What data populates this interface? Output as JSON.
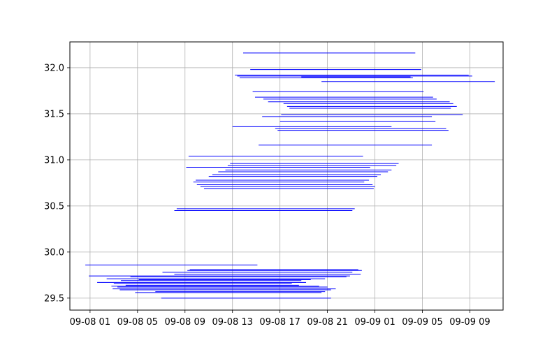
{
  "chart_data": {
    "type": "line",
    "title": "",
    "xlabel": "",
    "ylabel": "",
    "grid": true,
    "line_color": "#0000ff",
    "xlim_hours": [
      -1.7,
      34.8
    ],
    "ylim": [
      29.37,
      32.28
    ],
    "x_ticks": [
      {
        "hour": 0,
        "label": "09-08 01"
      },
      {
        "hour": 4,
        "label": "09-08 05"
      },
      {
        "hour": 8,
        "label": "09-08 09"
      },
      {
        "hour": 12,
        "label": "09-08 13"
      },
      {
        "hour": 16,
        "label": "09-08 17"
      },
      {
        "hour": 20,
        "label": "09-08 21"
      },
      {
        "hour": 24,
        "label": "09-09 01"
      },
      {
        "hour": 28,
        "label": "09-09 05"
      },
      {
        "hour": 32,
        "label": "09-09 09"
      }
    ],
    "y_ticks": [
      {
        "value": 29.5,
        "label": "29.5"
      },
      {
        "value": 30.0,
        "label": "30.0"
      },
      {
        "value": 30.5,
        "label": "30.5"
      },
      {
        "value": 31.0,
        "label": "31.0"
      },
      {
        "value": 31.5,
        "label": "31.5"
      },
      {
        "value": 32.0,
        "label": "32.0"
      }
    ],
    "segments": [
      {
        "y": 32.16,
        "x_start": 12.9,
        "x_end": 27.4
      },
      {
        "y": 31.98,
        "x_start": 13.5,
        "x_end": 27.9
      },
      {
        "y": 31.92,
        "x_start": 12.2,
        "x_end": 31.9
      },
      {
        "y": 31.91,
        "x_start": 12.4,
        "x_end": 32.2
      },
      {
        "y": 31.9,
        "x_start": 17.8,
        "x_end": 27.0
      },
      {
        "y": 31.89,
        "x_start": 12.6,
        "x_end": 27.2
      },
      {
        "y": 31.85,
        "x_start": 19.5,
        "x_end": 34.1
      },
      {
        "y": 31.74,
        "x_start": 13.7,
        "x_end": 28.1
      },
      {
        "y": 31.68,
        "x_start": 13.9,
        "x_end": 28.9
      },
      {
        "y": 31.66,
        "x_start": 14.6,
        "x_end": 29.2
      },
      {
        "y": 31.63,
        "x_start": 15.0,
        "x_end": 30.3
      },
      {
        "y": 31.61,
        "x_start": 16.3,
        "x_end": 30.6
      },
      {
        "y": 31.58,
        "x_start": 16.6,
        "x_end": 30.9
      },
      {
        "y": 31.56,
        "x_start": 16.8,
        "x_end": 30.4
      },
      {
        "y": 31.49,
        "x_start": 16.1,
        "x_end": 31.4
      },
      {
        "y": 31.47,
        "x_start": 14.5,
        "x_end": 28.8
      },
      {
        "y": 31.42,
        "x_start": 16.0,
        "x_end": 29.1
      },
      {
        "y": 31.36,
        "x_start": 12.0,
        "x_end": 25.4
      },
      {
        "y": 31.34,
        "x_start": 15.6,
        "x_end": 30.0
      },
      {
        "y": 31.32,
        "x_start": 15.8,
        "x_end": 30.2
      },
      {
        "y": 31.16,
        "x_start": 14.2,
        "x_end": 28.8
      },
      {
        "y": 31.04,
        "x_start": 8.3,
        "x_end": 23.0
      },
      {
        "y": 30.96,
        "x_start": 11.8,
        "x_end": 26.0
      },
      {
        "y": 30.94,
        "x_start": 11.6,
        "x_end": 25.8
      },
      {
        "y": 30.92,
        "x_start": 8.1,
        "x_end": 23.6
      },
      {
        "y": 30.89,
        "x_start": 11.4,
        "x_end": 25.4
      },
      {
        "y": 30.87,
        "x_start": 10.8,
        "x_end": 25.1
      },
      {
        "y": 30.84,
        "x_start": 10.3,
        "x_end": 24.5
      },
      {
        "y": 30.82,
        "x_start": 10.0,
        "x_end": 24.2
      },
      {
        "y": 30.78,
        "x_start": 8.9,
        "x_end": 23.5
      },
      {
        "y": 30.76,
        "x_start": 8.7,
        "x_end": 23.1
      },
      {
        "y": 30.73,
        "x_start": 9.0,
        "x_end": 23.8
      },
      {
        "y": 30.71,
        "x_start": 9.3,
        "x_end": 24.0
      },
      {
        "y": 30.69,
        "x_start": 9.6,
        "x_end": 23.9
      },
      {
        "y": 30.47,
        "x_start": 7.3,
        "x_end": 22.3
      },
      {
        "y": 30.45,
        "x_start": 7.1,
        "x_end": 22.1
      },
      {
        "y": 29.86,
        "x_start": -0.4,
        "x_end": 14.1
      },
      {
        "y": 29.81,
        "x_start": 8.4,
        "x_end": 22.6
      },
      {
        "y": 29.8,
        "x_start": 8.2,
        "x_end": 22.9
      },
      {
        "y": 29.78,
        "x_start": 6.1,
        "x_end": 22.1
      },
      {
        "y": 29.76,
        "x_start": 7.1,
        "x_end": 22.8
      },
      {
        "y": 29.74,
        "x_start": -0.1,
        "x_end": 21.9
      },
      {
        "y": 29.73,
        "x_start": 3.4,
        "x_end": 21.6
      },
      {
        "y": 29.71,
        "x_start": 1.4,
        "x_end": 19.8
      },
      {
        "y": 29.7,
        "x_start": 4.1,
        "x_end": 18.6
      },
      {
        "y": 29.69,
        "x_start": 2.6,
        "x_end": 17.8
      },
      {
        "y": 29.67,
        "x_start": 0.6,
        "x_end": 18.2
      },
      {
        "y": 29.66,
        "x_start": 2.0,
        "x_end": 17.0
      },
      {
        "y": 29.64,
        "x_start": 3.0,
        "x_end": 17.6
      },
      {
        "y": 29.63,
        "x_start": 1.8,
        "x_end": 19.3
      },
      {
        "y": 29.62,
        "x_start": 2.3,
        "x_end": 20.0
      },
      {
        "y": 29.6,
        "x_start": 1.9,
        "x_end": 20.7
      },
      {
        "y": 29.59,
        "x_start": 2.5,
        "x_end": 20.3
      },
      {
        "y": 29.57,
        "x_start": 5.5,
        "x_end": 19.8
      },
      {
        "y": 29.56,
        "x_start": 3.8,
        "x_end": 19.5
      },
      {
        "y": 29.5,
        "x_start": 6.0,
        "x_end": 20.3
      }
    ]
  }
}
